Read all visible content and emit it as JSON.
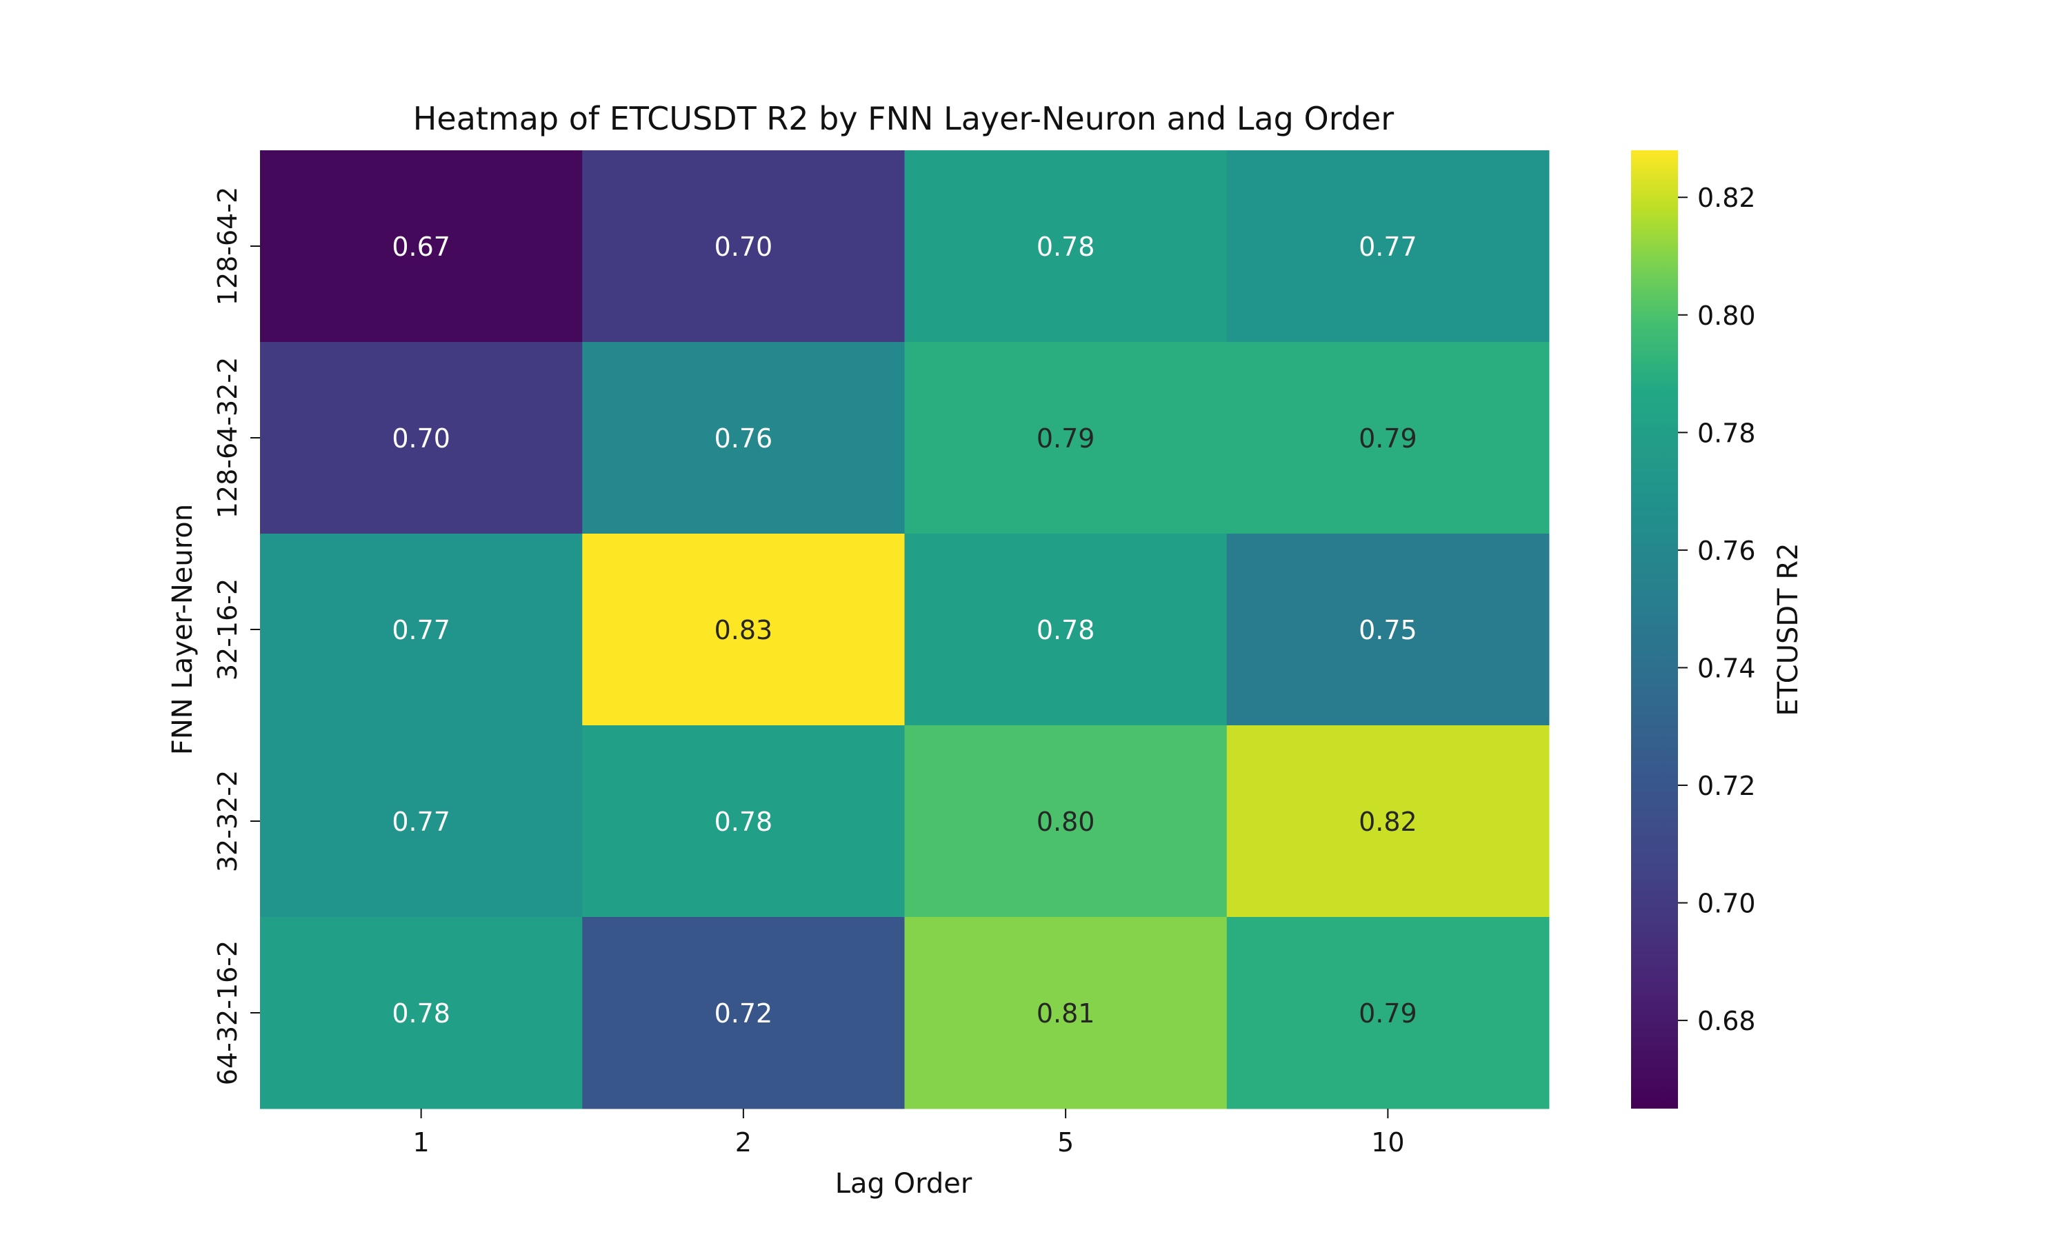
{
  "chart_data": {
    "type": "heatmap",
    "title": "Heatmap of ETCUSDT R2 by FNN Layer-Neuron and Lag Order",
    "xlabel": "Lag Order",
    "ylabel": "FNN Layer-Neuron",
    "x_categories": [
      "1",
      "2",
      "5",
      "10"
    ],
    "y_categories": [
      "128-64-2",
      "128-64-32-2",
      "32-16-2",
      "32-32-2",
      "64-32-16-2"
    ],
    "values": [
      [
        0.67,
        0.7,
        0.78,
        0.77
      ],
      [
        0.7,
        0.76,
        0.79,
        0.79
      ],
      [
        0.77,
        0.83,
        0.78,
        0.75
      ],
      [
        0.77,
        0.78,
        0.8,
        0.82
      ],
      [
        0.78,
        0.72,
        0.81,
        0.79
      ]
    ],
    "colorbar": {
      "label": "ETCUSDT R2",
      "range": [
        0.665,
        0.828
      ],
      "ticks": [
        "0.68",
        "0.70",
        "0.72",
        "0.74",
        "0.76",
        "0.78",
        "0.80",
        "0.82"
      ],
      "colormap": "viridis"
    },
    "grid": false
  }
}
